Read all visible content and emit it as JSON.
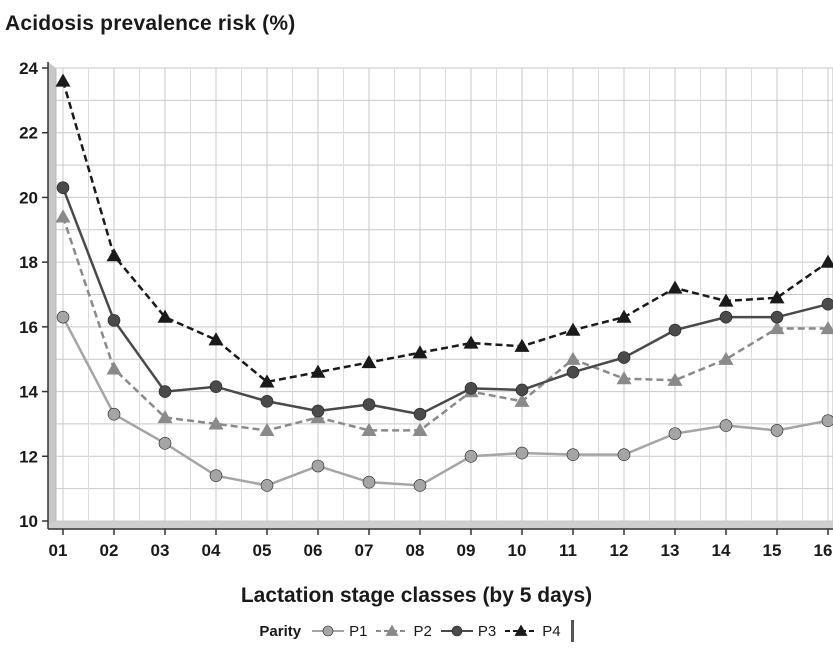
{
  "chart_data": {
    "type": "line",
    "title": "Acidosis prevalence risk (%)",
    "xlabel": "Lactation stage classes (by 5 days)",
    "ylabel": "",
    "categories": [
      "01",
      "02",
      "03",
      "04",
      "05",
      "06",
      "07",
      "08",
      "09",
      "10",
      "11",
      "12",
      "13",
      "14",
      "15",
      "16"
    ],
    "ylim": [
      10,
      24
    ],
    "yticks": [
      10,
      12,
      14,
      16,
      18,
      20,
      22,
      24
    ],
    "grid": true,
    "legend": {
      "title": "Parity",
      "placement": "bottom"
    },
    "series": [
      {
        "name": "P1",
        "color": "#a5a5a5",
        "line": "solid",
        "marker": "circle",
        "values": [
          16.3,
          13.3,
          12.4,
          11.4,
          11.1,
          11.7,
          11.2,
          11.1,
          12.0,
          12.1,
          12.05,
          12.05,
          12.7,
          12.95,
          12.8,
          13.1
        ]
      },
      {
        "name": "P2",
        "color": "#8a8a8a",
        "line": "dashed",
        "marker": "triangle",
        "values": [
          19.4,
          14.7,
          13.2,
          13.0,
          12.8,
          13.2,
          12.8,
          12.8,
          14.0,
          13.7,
          15.0,
          14.4,
          14.35,
          15.0,
          15.95,
          15.95
        ]
      },
      {
        "name": "P3",
        "color": "#4a4a4a",
        "line": "solid",
        "marker": "circle",
        "values": [
          20.3,
          16.2,
          14.0,
          14.15,
          13.7,
          13.4,
          13.6,
          13.3,
          14.1,
          14.05,
          14.6,
          15.05,
          15.9,
          16.3,
          16.3,
          16.7
        ]
      },
      {
        "name": "P4",
        "color": "#1a1a1a",
        "line": "dashed",
        "marker": "triangle",
        "values": [
          23.6,
          18.2,
          16.3,
          15.6,
          14.3,
          14.6,
          14.9,
          15.2,
          15.5,
          15.4,
          15.9,
          16.3,
          17.2,
          16.8,
          16.9,
          18.0
        ]
      }
    ]
  }
}
